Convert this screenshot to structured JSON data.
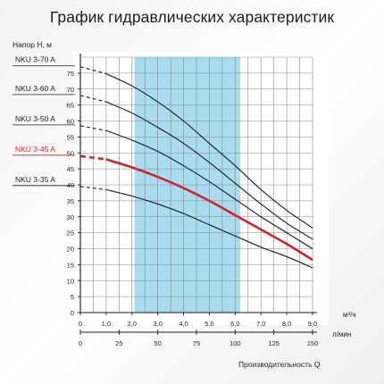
{
  "chart_data": {
    "type": "line",
    "title": "График гидравлических характеристик",
    "ylabel": "Напор H, м",
    "x_unit_label": "м³/ч",
    "x2_unit_label": "л/мин",
    "xlabel": "Производительность Q",
    "xlim": [
      0,
      9
    ],
    "ylim": [
      0,
      80
    ],
    "x_ticks": [
      "0",
      "1,0",
      "2,0",
      "3,0",
      "4,0",
      "5,0",
      "6,0",
      "7,0",
      "8,0",
      "9,0"
    ],
    "x2_ticks": [
      {
        "label": "0",
        "at": 0
      },
      {
        "label": "25",
        "at": 1.5
      },
      {
        "label": "50",
        "at": 3.0
      },
      {
        "label": "75",
        "at": 4.5
      },
      {
        "label": "100",
        "at": 6.0
      },
      {
        "label": "125",
        "at": 7.5
      },
      {
        "label": "150",
        "at": 9.0
      }
    ],
    "y_ticks": [
      0,
      5,
      10,
      15,
      20,
      25,
      30,
      35,
      40,
      45,
      50,
      55,
      60,
      65,
      70,
      75
    ],
    "grid": true,
    "highlight_range": [
      2.1,
      6.2
    ],
    "dashed_until_x": 1.0,
    "series": [
      {
        "name": "NKU 3-70 A",
        "color": "#1a1a1a",
        "highlight": false,
        "x": [
          0,
          1,
          2,
          3,
          4,
          5,
          6,
          7,
          8,
          9
        ],
        "y": [
          77,
          74.8,
          71,
          66,
          60,
          53,
          46,
          38.5,
          32,
          26.5
        ]
      },
      {
        "name": "NKU 3-60 A",
        "color": "#1a1a1a",
        "highlight": false,
        "x": [
          0,
          1,
          2,
          3,
          4,
          5,
          6,
          7,
          8,
          9
        ],
        "y": [
          68,
          66,
          62.5,
          58,
          53,
          47,
          40.5,
          34,
          28,
          23
        ]
      },
      {
        "name": "NKU 3-50 A",
        "color": "#1a1a1a",
        "highlight": false,
        "x": [
          0,
          1,
          2,
          3,
          4,
          5,
          6,
          7,
          8,
          9
        ],
        "y": [
          58.5,
          57,
          54,
          50.5,
          46,
          41,
          35.5,
          30,
          25,
          20
        ]
      },
      {
        "name": "NKU 3-45 A",
        "color": "#d0242a",
        "highlight": true,
        "x": [
          0,
          1,
          2,
          3,
          4,
          5,
          6,
          7,
          8,
          9
        ],
        "y": [
          49,
          48,
          45.5,
          42.5,
          39,
          35,
          30.5,
          26,
          21.5,
          16.5
        ]
      },
      {
        "name": "NKU 3-35 A",
        "color": "#1a1a1a",
        "highlight": false,
        "x": [
          0,
          1,
          2,
          3,
          4,
          5,
          6,
          7,
          8,
          9
        ],
        "y": [
          39.5,
          38.5,
          36.5,
          34,
          31,
          27.5,
          24,
          20.5,
          17.5,
          14
        ]
      }
    ]
  },
  "colors": {
    "highlight_band": "#a9dcef",
    "grid": "#8a8a8a",
    "axis": "#1a1a1a",
    "accent_red": "#d0242a"
  }
}
